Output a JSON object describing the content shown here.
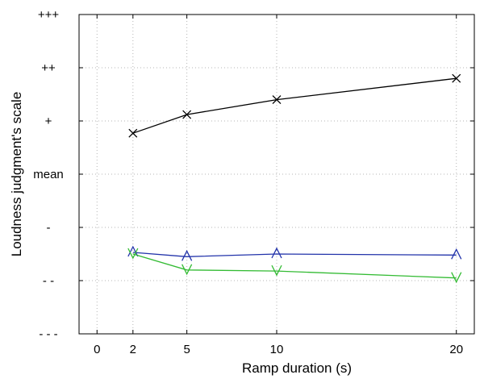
{
  "chart_data": {
    "type": "line",
    "title": "",
    "xlabel": "Ramp duration (s)",
    "ylabel": "Loudness judgment's scale",
    "xlim": [
      -1,
      21
    ],
    "ylim": [
      -3,
      3
    ],
    "x_ticks": [
      0,
      2,
      5,
      10,
      20
    ],
    "y_ticks": [
      {
        "value": -3,
        "label": "- - -"
      },
      {
        "value": -2,
        "label": "- -"
      },
      {
        "value": -1,
        "label": "-"
      },
      {
        "value": 0,
        "label": "mean"
      },
      {
        "value": 1,
        "label": "+"
      },
      {
        "value": 2,
        "label": "++"
      },
      {
        "value": 3,
        "label": "+++"
      }
    ],
    "grid": true,
    "series": [
      {
        "color": "#000000",
        "marker": "x",
        "x": [
          2,
          5,
          10,
          20
        ],
        "values": [
          0.77,
          1.12,
          1.4,
          1.8
        ]
      },
      {
        "color": "#2233aa",
        "marker": "triangle-up",
        "x": [
          2,
          5,
          10,
          20
        ],
        "values": [
          -1.47,
          -1.55,
          -1.5,
          -1.52
        ]
      },
      {
        "color": "#33bb33",
        "marker": "triangle-down",
        "x": [
          2,
          5,
          10,
          20
        ],
        "values": [
          -1.5,
          -1.8,
          -1.82,
          -1.95
        ]
      }
    ]
  }
}
